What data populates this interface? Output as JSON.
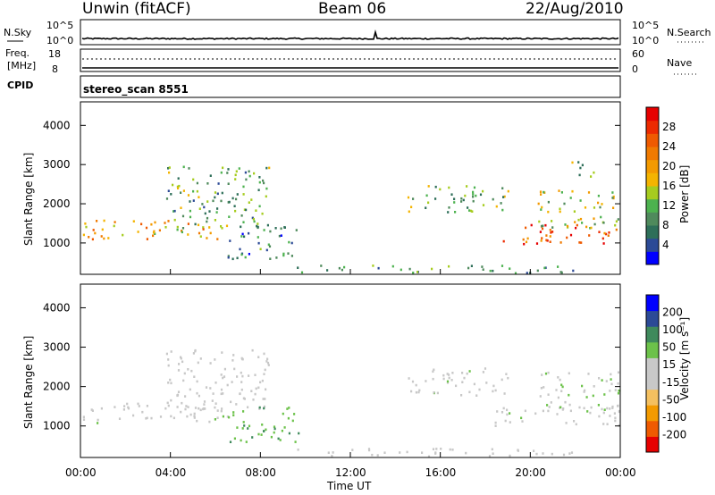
{
  "header": {
    "station": "Unwin (fitACF)",
    "beam": "Beam 06",
    "date": "22/Aug/2010"
  },
  "noise_panel": {
    "left_label": "N.Sky",
    "right_label": "N.Search",
    "left_ticks": [
      "10^5",
      "10^0"
    ],
    "right_ticks": [
      "10^5",
      "10^0"
    ]
  },
  "freq_panel": {
    "left_label_1": "Freq.",
    "left_label_2": "[MHz]",
    "right_label": "Nave",
    "left_ticks": [
      "18",
      "8"
    ],
    "right_ticks": [
      "60",
      "0"
    ],
    "cpid_label": "CPID"
  },
  "cpid_panel": {
    "text": "stereo_scan 8551"
  },
  "colors": {
    "power": [
      "#0000ff",
      "#2c4a96",
      "#2e6f59",
      "#4f8a5c",
      "#4db24f",
      "#a6cc1f",
      "#f4b400",
      "#f39a00",
      "#f07a00",
      "#ef5a00",
      "#ec2a00",
      "#e60000"
    ],
    "velocity": [
      "#e60000",
      "#ef5a00",
      "#f39a00",
      "#f4c060",
      "#c8c8c8",
      "#c8c8c8",
      "#6cc24a",
      "#3f8a5c",
      "#2c4a96",
      "#0000ff"
    ]
  },
  "chart_data": [
    {
      "type": "heatmap",
      "name": "power",
      "ylabel": "Slant Range [km]",
      "ylim": [
        200,
        4600
      ],
      "xlim": [
        0,
        24
      ],
      "yticks": [
        "1000",
        "2000",
        "3000",
        "4000"
      ],
      "colorbar_label": "Power [dB]",
      "colorbar_ticks": [
        "4",
        "8",
        "12",
        "16",
        "20",
        "24",
        "28"
      ],
      "regions": [
        {
          "t0": 0.0,
          "t1": 6.6,
          "r0": 1100,
          "r1": 1600,
          "v": 18
        },
        {
          "t0": 3.8,
          "t1": 8.4,
          "r0": 1400,
          "r1": 3000,
          "v": 10
        },
        {
          "t0": 6.5,
          "t1": 9.7,
          "r0": 600,
          "r1": 1500,
          "v": 8
        },
        {
          "t0": 14.5,
          "t1": 19.0,
          "r0": 1800,
          "r1": 2500,
          "v": 11
        },
        {
          "t0": 18.4,
          "t1": 24.0,
          "r0": 1000,
          "r1": 1500,
          "v": 24
        },
        {
          "t0": 20.3,
          "t1": 24.0,
          "r0": 1400,
          "r1": 2400,
          "v": 14
        },
        {
          "t0": 21.8,
          "t1": 22.8,
          "r0": 2700,
          "r1": 3200,
          "v": 10
        },
        {
          "t0": 9.6,
          "t1": 22.0,
          "r0": 250,
          "r1": 450,
          "v": 9
        }
      ]
    },
    {
      "type": "heatmap",
      "name": "velocity",
      "ylabel": "Slant Range [km]",
      "ylim": [
        200,
        4600
      ],
      "xlim": [
        0,
        24
      ],
      "yticks": [
        "1000",
        "2000",
        "3000",
        "4000"
      ],
      "colorbar_label": "Velocity [m s⁻¹]",
      "colorbar_ticks": [
        "-200",
        "-100",
        "-50",
        "-15",
        "15",
        "50",
        "100",
        "200"
      ],
      "xticks": [
        "00:00",
        "04:00",
        "08:00",
        "12:00",
        "16:00",
        "20:00",
        "00:00"
      ],
      "xlabel": "Time UT",
      "regions": [
        {
          "t0": 0.0,
          "t1": 6.6,
          "r0": 1100,
          "r1": 1600,
          "v": 0
        },
        {
          "t0": 3.8,
          "t1": 8.4,
          "r0": 1400,
          "r1": 3000,
          "v": -5
        },
        {
          "t0": 6.5,
          "t1": 9.7,
          "r0": 600,
          "r1": 1500,
          "v": 40
        },
        {
          "t0": 14.5,
          "t1": 19.0,
          "r0": 1800,
          "r1": 2500,
          "v": 0
        },
        {
          "t0": 18.4,
          "t1": 24.0,
          "r0": 1000,
          "r1": 1500,
          "v": 0
        },
        {
          "t0": 20.3,
          "t1": 24.0,
          "r0": 1400,
          "r1": 2400,
          "v": 5
        },
        {
          "t0": 9.6,
          "t1": 22.0,
          "r0": 250,
          "r1": 450,
          "v": -30
        }
      ]
    }
  ]
}
